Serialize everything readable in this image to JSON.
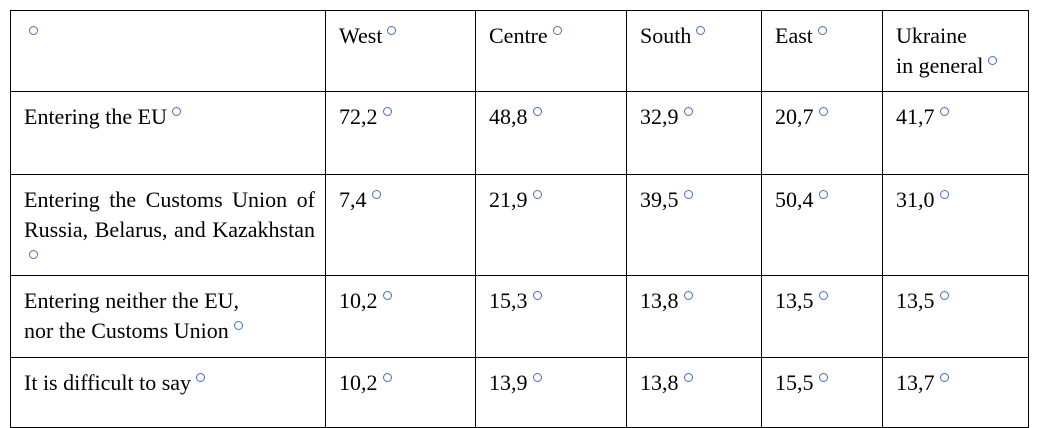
{
  "table": {
    "columns": [
      "West",
      "Centre",
      "South",
      "East",
      "Ukraine\nin general"
    ],
    "rows": [
      [
        "Entering the EU",
        "72,2",
        "48,8",
        "32,9",
        "20,7",
        "41,7"
      ],
      [
        "Entering the Customs Union of Russia, Belarus, and Kazakhstan",
        "7,4",
        "21,9",
        "39,5",
        "50,4",
        "31,0"
      ],
      [
        "Entering neither the EU,\nnor the Customs Union",
        "10,2",
        "15,3",
        "13,8",
        "13,5",
        "13,5"
      ],
      [
        "It is difficult to say",
        "10,2",
        "13,9",
        "13,8",
        "15,5",
        "13,7"
      ]
    ]
  }
}
